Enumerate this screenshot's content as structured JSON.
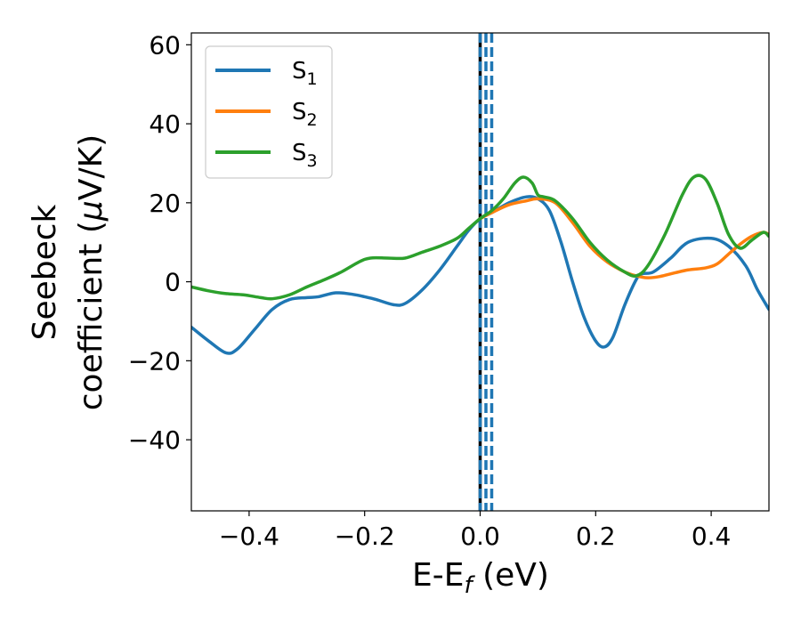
{
  "chart_data": {
    "type": "line",
    "title": "",
    "xlabel": {
      "main": "E-E",
      "sub": "f",
      "tail": " (eV)"
    },
    "ylabel": {
      "line1": "Seebeck",
      "line2_prefix": "coefficient  (",
      "mu": "μ",
      "line2_suffix": "V/K)"
    },
    "xlim": [
      -0.5,
      0.5
    ],
    "ylim": [
      -58,
      63
    ],
    "xticks": [
      {
        "value": -0.4,
        "label": "−0.4"
      },
      {
        "value": -0.2,
        "label": "−0.2"
      },
      {
        "value": 0.0,
        "label": "0.0"
      },
      {
        "value": 0.2,
        "label": "0.2"
      },
      {
        "value": 0.4,
        "label": "0.4"
      }
    ],
    "yticks": [
      {
        "value": -40,
        "label": "−40"
      },
      {
        "value": -20,
        "label": "−20"
      },
      {
        "value": 0,
        "label": "0"
      },
      {
        "value": 20,
        "label": "20"
      },
      {
        "value": 40,
        "label": "40"
      },
      {
        "value": 60,
        "label": "60"
      }
    ],
    "grid": false,
    "legend": {
      "position": "top-left"
    },
    "series": [
      {
        "name": "S",
        "sub": "1",
        "color": "#1f77b4",
        "points": [
          [
            -0.5,
            -11.5
          ],
          [
            -0.47,
            -15
          ],
          [
            -0.44,
            -18
          ],
          [
            -0.42,
            -17
          ],
          [
            -0.39,
            -12
          ],
          [
            -0.36,
            -7
          ],
          [
            -0.33,
            -4.5
          ],
          [
            -0.3,
            -4
          ],
          [
            -0.28,
            -3.8
          ],
          [
            -0.25,
            -2.8
          ],
          [
            -0.22,
            -3.2
          ],
          [
            -0.2,
            -3.8
          ],
          [
            -0.18,
            -4.5
          ],
          [
            -0.15,
            -5.8
          ],
          [
            -0.13,
            -5.5
          ],
          [
            -0.1,
            -2
          ],
          [
            -0.07,
            3
          ],
          [
            -0.04,
            9
          ],
          [
            -0.02,
            13
          ],
          [
            0.0,
            16
          ],
          [
            0.02,
            17.5
          ],
          [
            0.05,
            20
          ],
          [
            0.08,
            21.5
          ],
          [
            0.1,
            21
          ],
          [
            0.12,
            18
          ],
          [
            0.14,
            10
          ],
          [
            0.16,
            0
          ],
          [
            0.18,
            -9
          ],
          [
            0.2,
            -15
          ],
          [
            0.215,
            -16.5
          ],
          [
            0.23,
            -14
          ],
          [
            0.25,
            -6
          ],
          [
            0.27,
            0.5
          ],
          [
            0.28,
            2
          ],
          [
            0.3,
            2.5
          ],
          [
            0.33,
            6
          ],
          [
            0.36,
            10
          ],
          [
            0.4,
            11
          ],
          [
            0.43,
            9
          ],
          [
            0.46,
            4
          ],
          [
            0.48,
            -2
          ],
          [
            0.5,
            -7
          ]
        ]
      },
      {
        "name": "S",
        "sub": "2",
        "color": "#ff7f0e",
        "points": [
          [
            0.0,
            16
          ],
          [
            0.02,
            17.5
          ],
          [
            0.05,
            19.5
          ],
          [
            0.08,
            20.5
          ],
          [
            0.1,
            21
          ],
          [
            0.13,
            20
          ],
          [
            0.16,
            15
          ],
          [
            0.19,
            9
          ],
          [
            0.22,
            5
          ],
          [
            0.25,
            2.5
          ],
          [
            0.27,
            1.5
          ],
          [
            0.29,
            1
          ],
          [
            0.31,
            1.3
          ],
          [
            0.33,
            2
          ],
          [
            0.36,
            3
          ],
          [
            0.39,
            3.5
          ],
          [
            0.41,
            4.5
          ],
          [
            0.43,
            7
          ],
          [
            0.45,
            9.5
          ],
          [
            0.47,
            11.5
          ],
          [
            0.49,
            12.5
          ],
          [
            0.5,
            12
          ]
        ]
      },
      {
        "name": "S",
        "sub": "3",
        "color": "#2ca02c",
        "points": [
          [
            -0.5,
            -1.3
          ],
          [
            -0.47,
            -2.3
          ],
          [
            -0.44,
            -3
          ],
          [
            -0.41,
            -3.3
          ],
          [
            -0.38,
            -4
          ],
          [
            -0.36,
            -4.3
          ],
          [
            -0.33,
            -3.3
          ],
          [
            -0.3,
            -1.3
          ],
          [
            -0.27,
            0.5
          ],
          [
            -0.24,
            2.5
          ],
          [
            -0.21,
            5
          ],
          [
            -0.19,
            6
          ],
          [
            -0.16,
            6
          ],
          [
            -0.13,
            6
          ],
          [
            -0.1,
            7.5
          ],
          [
            -0.07,
            9
          ],
          [
            -0.04,
            11
          ],
          [
            -0.02,
            13.5
          ],
          [
            0.0,
            16
          ],
          [
            0.02,
            18
          ],
          [
            0.04,
            21
          ],
          [
            0.06,
            25
          ],
          [
            0.075,
            26.5
          ],
          [
            0.09,
            25
          ],
          [
            0.1,
            22
          ],
          [
            0.11,
            21.5
          ],
          [
            0.13,
            20.5
          ],
          [
            0.16,
            16
          ],
          [
            0.19,
            10
          ],
          [
            0.22,
            5.5
          ],
          [
            0.25,
            2.5
          ],
          [
            0.27,
            1.5
          ],
          [
            0.29,
            4
          ],
          [
            0.32,
            12
          ],
          [
            0.35,
            22
          ],
          [
            0.37,
            26.5
          ],
          [
            0.39,
            26
          ],
          [
            0.41,
            20
          ],
          [
            0.43,
            12
          ],
          [
            0.45,
            8.5
          ],
          [
            0.47,
            10.5
          ],
          [
            0.49,
            12.5
          ],
          [
            0.5,
            11.5
          ]
        ]
      }
    ],
    "vlines": [
      {
        "x": 0.0,
        "color": "#000000",
        "style": "solid"
      },
      {
        "x": 0.0,
        "color": "#1f77b4",
        "style": "dashed"
      },
      {
        "x": 0.01,
        "color": "#1f77b4",
        "style": "dashed"
      },
      {
        "x": 0.02,
        "color": "#1f77b4",
        "style": "dashed"
      }
    ]
  }
}
